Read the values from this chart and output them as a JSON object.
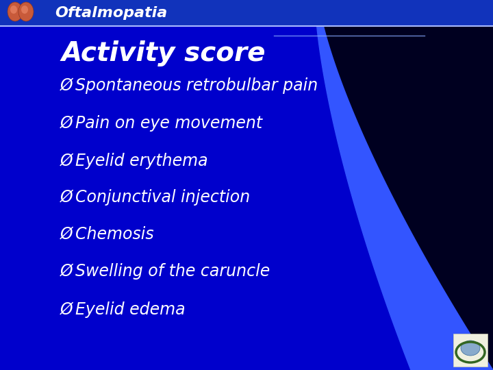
{
  "title_bar_text": "Oftalmopatia",
  "title_bar_bg": "#1133bb",
  "title_bar_text_color": "#ffffff",
  "background_color": "#0000cc",
  "main_title": "Activity score",
  "main_title_color": "#ffffff",
  "bullet_items": [
    "Spontaneous retrobulbar pain",
    "Pain on eye movement",
    "Eyelid erythema",
    "Conjunctival injection",
    "Chemosis",
    "Swelling of the caruncle",
    "Eyelid edema"
  ],
  "bullet_color": "#ffffff",
  "bullet_fontsize": 17,
  "main_title_fontsize": 28,
  "title_bar_fontsize": 16,
  "dark_region_color": "#000020",
  "light_band_color": "#3355ff",
  "header_line_color": "#aabbff",
  "title_bar_height": 38,
  "fig_width": 7.2,
  "fig_height": 5.4,
  "fig_dpi": 100
}
